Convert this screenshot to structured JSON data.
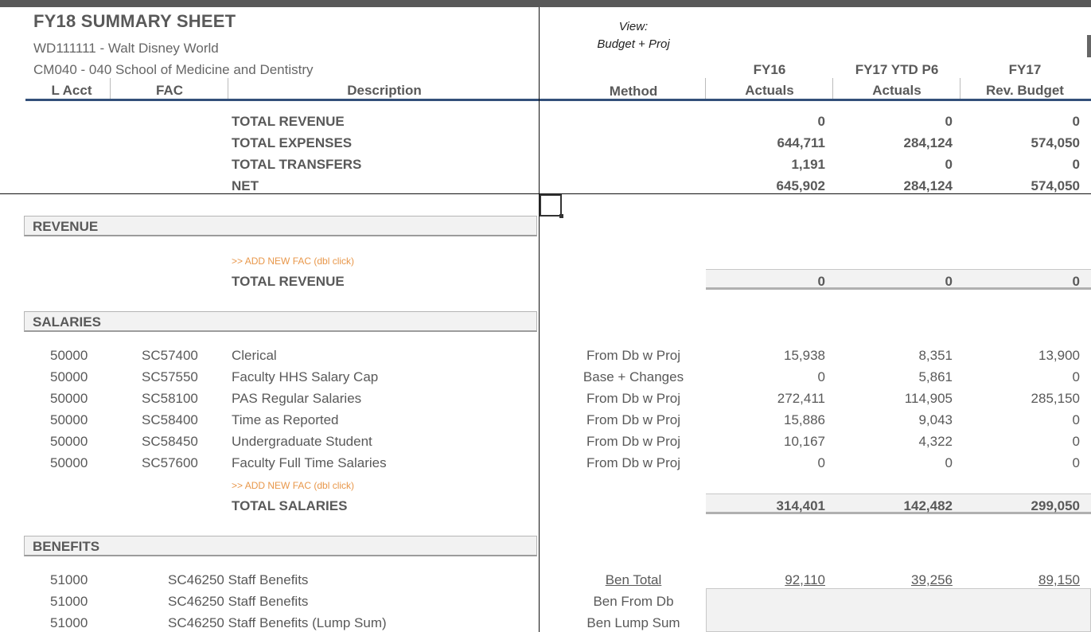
{
  "sheet": {
    "title": "FY18 SUMMARY SHEET",
    "org": "WD111111 - Walt Disney World",
    "dept": "CM040 - 040 School of Medicine and Dentistry",
    "view_label": "View:",
    "view_value": "Budget + Proj"
  },
  "headers": {
    "l_acct": "L Acct",
    "fac": "FAC",
    "description": "Description",
    "method": "Method",
    "fy16_l1": "FY16",
    "fy16_l2": "Actuals",
    "fy17ytd_l1": "FY17 YTD P6",
    "fy17ytd_l2": "Actuals",
    "fy17_l1": "FY17",
    "fy17_l2": "Rev. Budget"
  },
  "summary": [
    {
      "label": "TOTAL REVENUE",
      "fy16": "0",
      "fy17ytd": "0",
      "fy17": "0"
    },
    {
      "label": "TOTAL EXPENSES",
      "fy16": "644,711",
      "fy17ytd": "284,124",
      "fy17": "574,050"
    },
    {
      "label": "TOTAL TRANSFERS",
      "fy16": "1,191",
      "fy17ytd": "0",
      "fy17": "0"
    },
    {
      "label": "NET",
      "fy16": "645,902",
      "fy17ytd": "284,124",
      "fy17": "574,050"
    }
  ],
  "revenue": {
    "section": "REVENUE",
    "add_fac": ">> ADD NEW FAC (dbl click)",
    "total": {
      "label": "TOTAL REVENUE",
      "fy16": "0",
      "fy17ytd": "0",
      "fy17": "0"
    }
  },
  "salaries": {
    "section": "SALARIES",
    "rows": [
      {
        "acct": "50000",
        "fac": "SC57400",
        "desc": "Clerical",
        "method": "From Db w Proj",
        "fy16": "15,938",
        "fy17ytd": "8,351",
        "fy17": "13,900"
      },
      {
        "acct": "50000",
        "fac": "SC57550",
        "desc": "Faculty HHS Salary Cap",
        "method": "Base + Changes",
        "fy16": "0",
        "fy17ytd": "5,861",
        "fy17": "0"
      },
      {
        "acct": "50000",
        "fac": "SC58100",
        "desc": "PAS Regular Salaries",
        "method": "From Db w Proj",
        "fy16": "272,411",
        "fy17ytd": "114,905",
        "fy17": "285,150"
      },
      {
        "acct": "50000",
        "fac": "SC58400",
        "desc": "Time as Reported",
        "method": "From Db w Proj",
        "fy16": "15,886",
        "fy17ytd": "9,043",
        "fy17": "0"
      },
      {
        "acct": "50000",
        "fac": "SC58450",
        "desc": "Undergraduate Student",
        "method": "From Db w Proj",
        "fy16": "10,167",
        "fy17ytd": "4,322",
        "fy17": "0"
      },
      {
        "acct": "50000",
        "fac": "SC57600",
        "desc": "Faculty Full Time Salaries",
        "method": "From Db w Proj",
        "fy16": "0",
        "fy17ytd": "0",
        "fy17": "0"
      }
    ],
    "add_fac": ">> ADD NEW FAC (dbl click)",
    "total": {
      "label": "TOTAL SALARIES",
      "fy16": "314,401",
      "fy17ytd": "142,482",
      "fy17": "299,050"
    }
  },
  "benefits": {
    "section": "BENEFITS",
    "rows": [
      {
        "acct": "51000",
        "facdesc": "SC46250 Staff Benefits",
        "method": "Ben Total",
        "fy16": "92,110",
        "fy17ytd": "39,256",
        "fy17": "89,150"
      },
      {
        "acct": "51000",
        "facdesc": "SC46250 Staff Benefits",
        "method": "Ben From Db"
      },
      {
        "acct": "51000",
        "facdesc": "SC46250 Staff Benefits (Lump Sum)",
        "method": "Ben Lump Sum"
      }
    ]
  }
}
